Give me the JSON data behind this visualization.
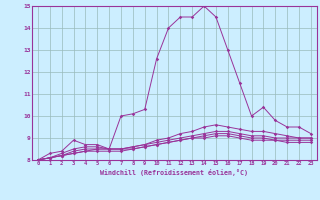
{
  "xlabel": "Windchill (Refroidissement éolien,°C)",
  "xlim": [
    0,
    23
  ],
  "ylim": [
    8,
    15
  ],
  "yticks": [
    8,
    9,
    10,
    11,
    12,
    13,
    14,
    15
  ],
  "xticks": [
    0,
    1,
    2,
    3,
    4,
    5,
    6,
    7,
    8,
    9,
    10,
    11,
    12,
    13,
    14,
    15,
    16,
    17,
    18,
    19,
    20,
    21,
    22,
    23
  ],
  "bg_color": "#cceeff",
  "line_color": "#993399",
  "grid_color": "#aacccc",
  "lines": [
    [
      8.0,
      8.3,
      8.4,
      8.9,
      8.7,
      8.7,
      8.5,
      10.0,
      10.1,
      10.3,
      12.6,
      14.0,
      14.5,
      14.5,
      15.0,
      14.5,
      13.0,
      11.5,
      10.0,
      10.4,
      9.8,
      9.5,
      9.5,
      9.2
    ],
    [
      8.0,
      8.1,
      8.3,
      8.5,
      8.6,
      8.6,
      8.5,
      8.5,
      8.6,
      8.7,
      8.9,
      9.0,
      9.2,
      9.3,
      9.5,
      9.6,
      9.5,
      9.4,
      9.3,
      9.3,
      9.2,
      9.1,
      9.0,
      9.0
    ],
    [
      8.0,
      8.1,
      8.2,
      8.4,
      8.5,
      8.5,
      8.5,
      8.5,
      8.6,
      8.7,
      8.8,
      8.9,
      9.0,
      9.1,
      9.2,
      9.3,
      9.3,
      9.2,
      9.1,
      9.1,
      9.0,
      9.0,
      9.0,
      9.0
    ],
    [
      8.0,
      8.1,
      8.2,
      8.3,
      8.4,
      8.5,
      8.5,
      8.5,
      8.5,
      8.6,
      8.7,
      8.8,
      8.9,
      9.0,
      9.1,
      9.2,
      9.2,
      9.1,
      9.0,
      9.0,
      8.9,
      8.9,
      8.9,
      8.9
    ],
    [
      8.0,
      8.1,
      8.2,
      8.3,
      8.4,
      8.4,
      8.4,
      8.4,
      8.5,
      8.6,
      8.7,
      8.8,
      8.9,
      9.0,
      9.0,
      9.1,
      9.1,
      9.0,
      8.9,
      8.9,
      8.9,
      8.8,
      8.8,
      8.8
    ]
  ]
}
